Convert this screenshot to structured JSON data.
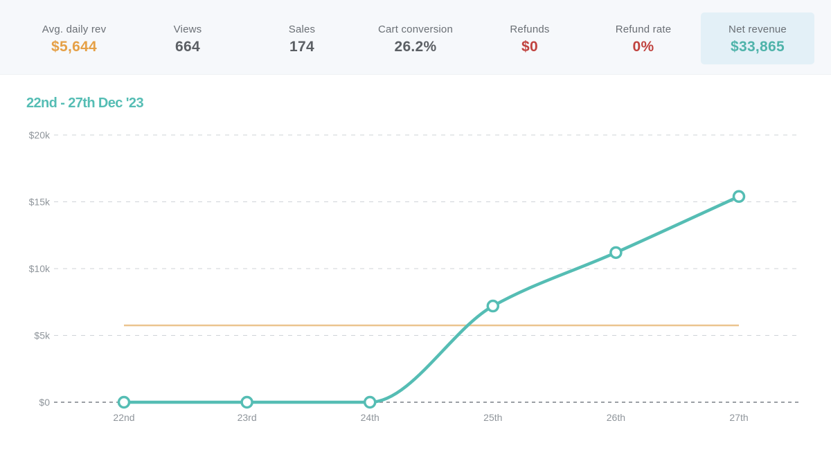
{
  "stats": [
    {
      "label": "Avg. daily rev",
      "value": "$5,644",
      "color": "#e5a046"
    },
    {
      "label": "Views",
      "value": "664",
      "color": "#5b5f64"
    },
    {
      "label": "Sales",
      "value": "174",
      "color": "#5b5f64"
    },
    {
      "label": "Cart conversion",
      "value": "26.2%",
      "color": "#5b5f64"
    },
    {
      "label": "Refunds",
      "value": "$0",
      "color": "#c0433f"
    },
    {
      "label": "Refund rate",
      "value": "0%",
      "color": "#c0433f"
    },
    {
      "label": "Net revenue",
      "value": "$33,865",
      "color": "#4fb3aa",
      "selected": true
    }
  ],
  "colors": {
    "line": "#55bdb4",
    "average": "#ebc48f",
    "grid": "#cfd3d7",
    "baseline": "#9b9fa4",
    "title": "#55bdb4"
  },
  "chart_data": {
    "type": "line",
    "title": "22nd - 27th Dec '23",
    "categories": [
      "22nd",
      "23rd",
      "24th",
      "25th",
      "26th",
      "27th"
    ],
    "series": [
      {
        "values": [
          0,
          0,
          0,
          7200,
          11200,
          15400
        ]
      }
    ],
    "reference_line": {
      "value": 5750
    },
    "y_ticks": [
      0,
      5000,
      10000,
      15000,
      20000
    ],
    "y_tick_labels": [
      "$0",
      "$5k",
      "$10k",
      "$15k",
      "$20k"
    ],
    "ylim": [
      0,
      20000
    ],
    "xlabel": "",
    "ylabel": "",
    "grid": true,
    "legend": "none"
  }
}
